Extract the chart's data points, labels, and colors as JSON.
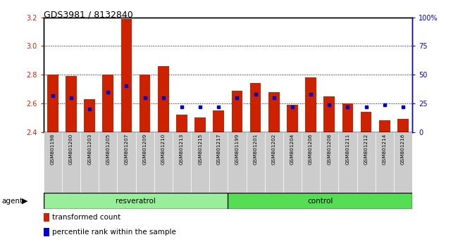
{
  "title": "GDS3981 / 8132840",
  "samples": [
    "GSM801198",
    "GSM801200",
    "GSM801203",
    "GSM801205",
    "GSM801207",
    "GSM801209",
    "GSM801210",
    "GSM801213",
    "GSM801215",
    "GSM801217",
    "GSM801199",
    "GSM801201",
    "GSM801202",
    "GSM801204",
    "GSM801206",
    "GSM801208",
    "GSM801211",
    "GSM801212",
    "GSM801214",
    "GSM801216"
  ],
  "bar_values": [
    2.8,
    2.79,
    2.63,
    2.8,
    3.19,
    2.8,
    2.86,
    2.52,
    2.5,
    2.55,
    2.69,
    2.74,
    2.68,
    2.59,
    2.78,
    2.65,
    2.6,
    2.54,
    2.48,
    2.49
  ],
  "percentile_values": [
    32,
    30,
    20,
    35,
    40,
    30,
    30,
    22,
    22,
    22,
    30,
    33,
    30,
    22,
    33,
    24,
    22,
    22,
    24,
    22
  ],
  "bar_color": "#cc2200",
  "percentile_color": "#0000cc",
  "ylim_left": [
    2.4,
    3.2
  ],
  "ylim_right": [
    0,
    100
  ],
  "yticks_left": [
    2.4,
    2.6,
    2.8,
    3.0,
    3.2
  ],
  "yticks_right": [
    0,
    25,
    50,
    75,
    100
  ],
  "ytick_labels_right": [
    "0",
    "25",
    "50",
    "75",
    "100%"
  ],
  "bar_width": 0.6,
  "legend_entries": [
    {
      "color": "#cc2200",
      "label": "transformed count"
    },
    {
      "color": "#0000cc",
      "label": "percentile rank within the sample"
    }
  ],
  "resveratrol_color": "#99ee99",
  "control_color": "#55dd55",
  "label_bg": "#cccccc"
}
